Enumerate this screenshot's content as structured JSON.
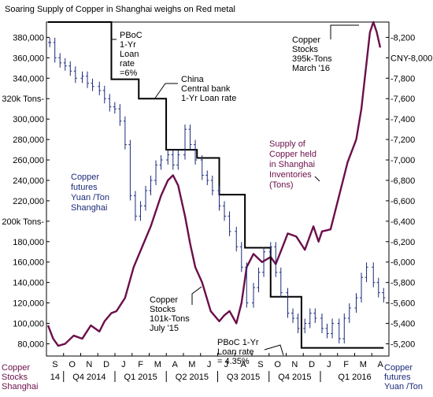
{
  "chart_data": {
    "type": "line",
    "title": "Soaring Supply of Copper in Shanghai weighs on Red metal",
    "colors": {
      "stocks": "#6b0f4a",
      "futures": "#1b2a7a",
      "pboc": "#000000",
      "frame": "#000000"
    },
    "x_months": [
      "S",
      "O",
      "N",
      "D",
      "J",
      "F",
      "M",
      "A",
      "M",
      "J",
      "J",
      "A",
      "S",
      "O",
      "N",
      "D",
      "J",
      "F",
      "M",
      "A"
    ],
    "x_periods": [
      "14",
      "Q4 2014",
      "Q1 2015",
      "Q2 2015",
      "Q3 2015",
      "Q4 2015",
      "Q1 2016"
    ],
    "left_axis": {
      "ticks": [
        380000,
        360000,
        340000,
        320000,
        300000,
        280000,
        260000,
        240000,
        220000,
        200000,
        180000,
        160000,
        140000,
        120000,
        100000,
        80000
      ],
      "tick_labels": [
        "380,000",
        "360,000",
        "340,000",
        "320k Tons-",
        "300,000",
        "280,000",
        "260,000",
        "240,000",
        "220,000",
        "200k Tons-",
        "180,000",
        "160,000",
        "140,000",
        "120,000",
        "100,000",
        "80,000"
      ],
      "ylim": [
        68000,
        395000
      ],
      "label": [
        "Copper",
        "Stocks",
        "Shanghai"
      ]
    },
    "right_axis": {
      "ticks": [
        8200,
        8000,
        7800,
        7600,
        7400,
        7200,
        7000,
        6800,
        6600,
        6400,
        6200,
        6000,
        5800,
        5600,
        5400,
        5200
      ],
      "tick_labels": [
        "-8,200",
        "CNY-8,000",
        "-7,800",
        "-7,600",
        "-7,400",
        "-7,200",
        "-7,000",
        "-6,800",
        "-6,600",
        "-6,400",
        "-6,200",
        "-6,000",
        "-5,800",
        "-5,600",
        "-5,400",
        "-5,200"
      ],
      "label": [
        "Copper",
        "futures",
        "Yuan /Ton"
      ]
    },
    "series": [
      {
        "name": "Supply of Copper held in Shanghai Inventories (Tons)",
        "x": [
          0.0,
          0.3,
          0.6,
          1.0,
          1.5,
          2.0,
          2.5,
          3.0,
          3.3,
          3.7,
          4.0,
          4.5,
          5.0,
          5.5,
          6.0,
          6.2,
          6.6,
          7.0,
          7.3,
          7.6,
          8.0,
          8.3,
          8.6,
          9.0,
          9.5,
          10.0,
          10.3,
          10.6,
          11.0,
          11.3,
          11.6,
          12.0,
          12.5,
          13.0,
          13.3,
          13.7,
          14.0,
          14.5,
          15.0,
          15.5,
          15.8,
          16.0,
          16.5,
          17.0,
          17.5,
          18.0,
          18.3,
          18.6,
          18.8,
          19.0,
          19.2,
          19.4
        ],
        "y": [
          98000,
          85000,
          78000,
          80000,
          88000,
          85000,
          98000,
          92000,
          102000,
          110000,
          112000,
          125000,
          155000,
          175000,
          195000,
          205000,
          225000,
          240000,
          245000,
          235000,
          205000,
          178000,
          155000,
          140000,
          112000,
          102000,
          108000,
          112000,
          100000,
          120000,
          155000,
          168000,
          160000,
          165000,
          158000,
          175000,
          188000,
          185000,
          172000,
          195000,
          180000,
          190000,
          192000,
          225000,
          258000,
          280000,
          310000,
          355000,
          385000,
          395000,
          385000,
          370000
        ]
      },
      {
        "name": "Copper futures Yuan /Ton Shanghai",
        "x": [
          0.1,
          0.4,
          0.7,
          1.0,
          1.3,
          1.6,
          2.0,
          2.3,
          2.6,
          3.0,
          3.3,
          3.6,
          3.9,
          4.2,
          4.5,
          4.8,
          5.1,
          5.4,
          5.7,
          6.0,
          6.3,
          6.6,
          7.0,
          7.3,
          7.6,
          8.0,
          8.3,
          8.6,
          9.0,
          9.3,
          9.6,
          10.0,
          10.3,
          10.6,
          11.0,
          11.3,
          11.6,
          12.0,
          12.3,
          12.6,
          13.0,
          13.3,
          13.6,
          14.0,
          14.3,
          14.6,
          15.0,
          15.3,
          15.6,
          16.0,
          16.3,
          16.6,
          17.0,
          17.3,
          17.6,
          18.0,
          18.3,
          18.6,
          19.0,
          19.3,
          19.6
        ],
        "y": [
          8150,
          8000,
          7950,
          7920,
          7870,
          7800,
          7820,
          7750,
          7720,
          7680,
          7600,
          7520,
          7500,
          7380,
          7150,
          6650,
          6450,
          6550,
          6700,
          6800,
          6950,
          7000,
          7050,
          6950,
          7050,
          7300,
          7150,
          7000,
          6850,
          6800,
          6700,
          6550,
          6450,
          6300,
          6150,
          5950,
          5600,
          5750,
          5900,
          6100,
          6150,
          5900,
          5700,
          5500,
          5450,
          5350,
          5400,
          5500,
          5450,
          5350,
          5300,
          5400,
          5250,
          5450,
          5550,
          5650,
          5850,
          5950,
          5800,
          5700,
          5650
        ]
      },
      {
        "name": "PBoC 1-Yr Loan rate",
        "x": [
          0.0,
          3.7,
          3.7,
          5.3,
          5.3,
          6.9,
          6.9,
          8.7,
          8.7,
          10.0,
          10.0,
          11.5,
          11.5,
          13.0,
          13.0,
          14.8,
          14.8,
          19.6
        ],
        "y": [
          395000,
          395000,
          339000,
          339000,
          320000,
          320000,
          270000,
          270000,
          262000,
          262000,
          226000,
          226000,
          174000,
          174000,
          126000,
          126000,
          76000,
          76000
        ]
      }
    ],
    "annotations": {
      "pboc_6": [
        "PBoC",
        "1-Yr",
        "Loan",
        "rate",
        "=6%"
      ],
      "china_cb": [
        "China",
        "Central bank",
        "1-Yr Loan rate"
      ],
      "copper_395": [
        "Copper",
        "Stocks",
        "395k-Tons",
        "March '16"
      ],
      "supply_label": [
        "Supply of",
        "Copper held",
        "in Shanghai",
        "Inventories",
        "(Tons)"
      ],
      "futures_label": [
        "Copper",
        "futures",
        "Yuan /Ton",
        "Shanghai"
      ],
      "copper_101": [
        "Copper",
        "Stocks",
        "101k-Tons",
        "July '15"
      ],
      "pboc_435": [
        "PBoC 1-Yr",
        "Loan rate",
        "= 4.35%"
      ]
    }
  }
}
